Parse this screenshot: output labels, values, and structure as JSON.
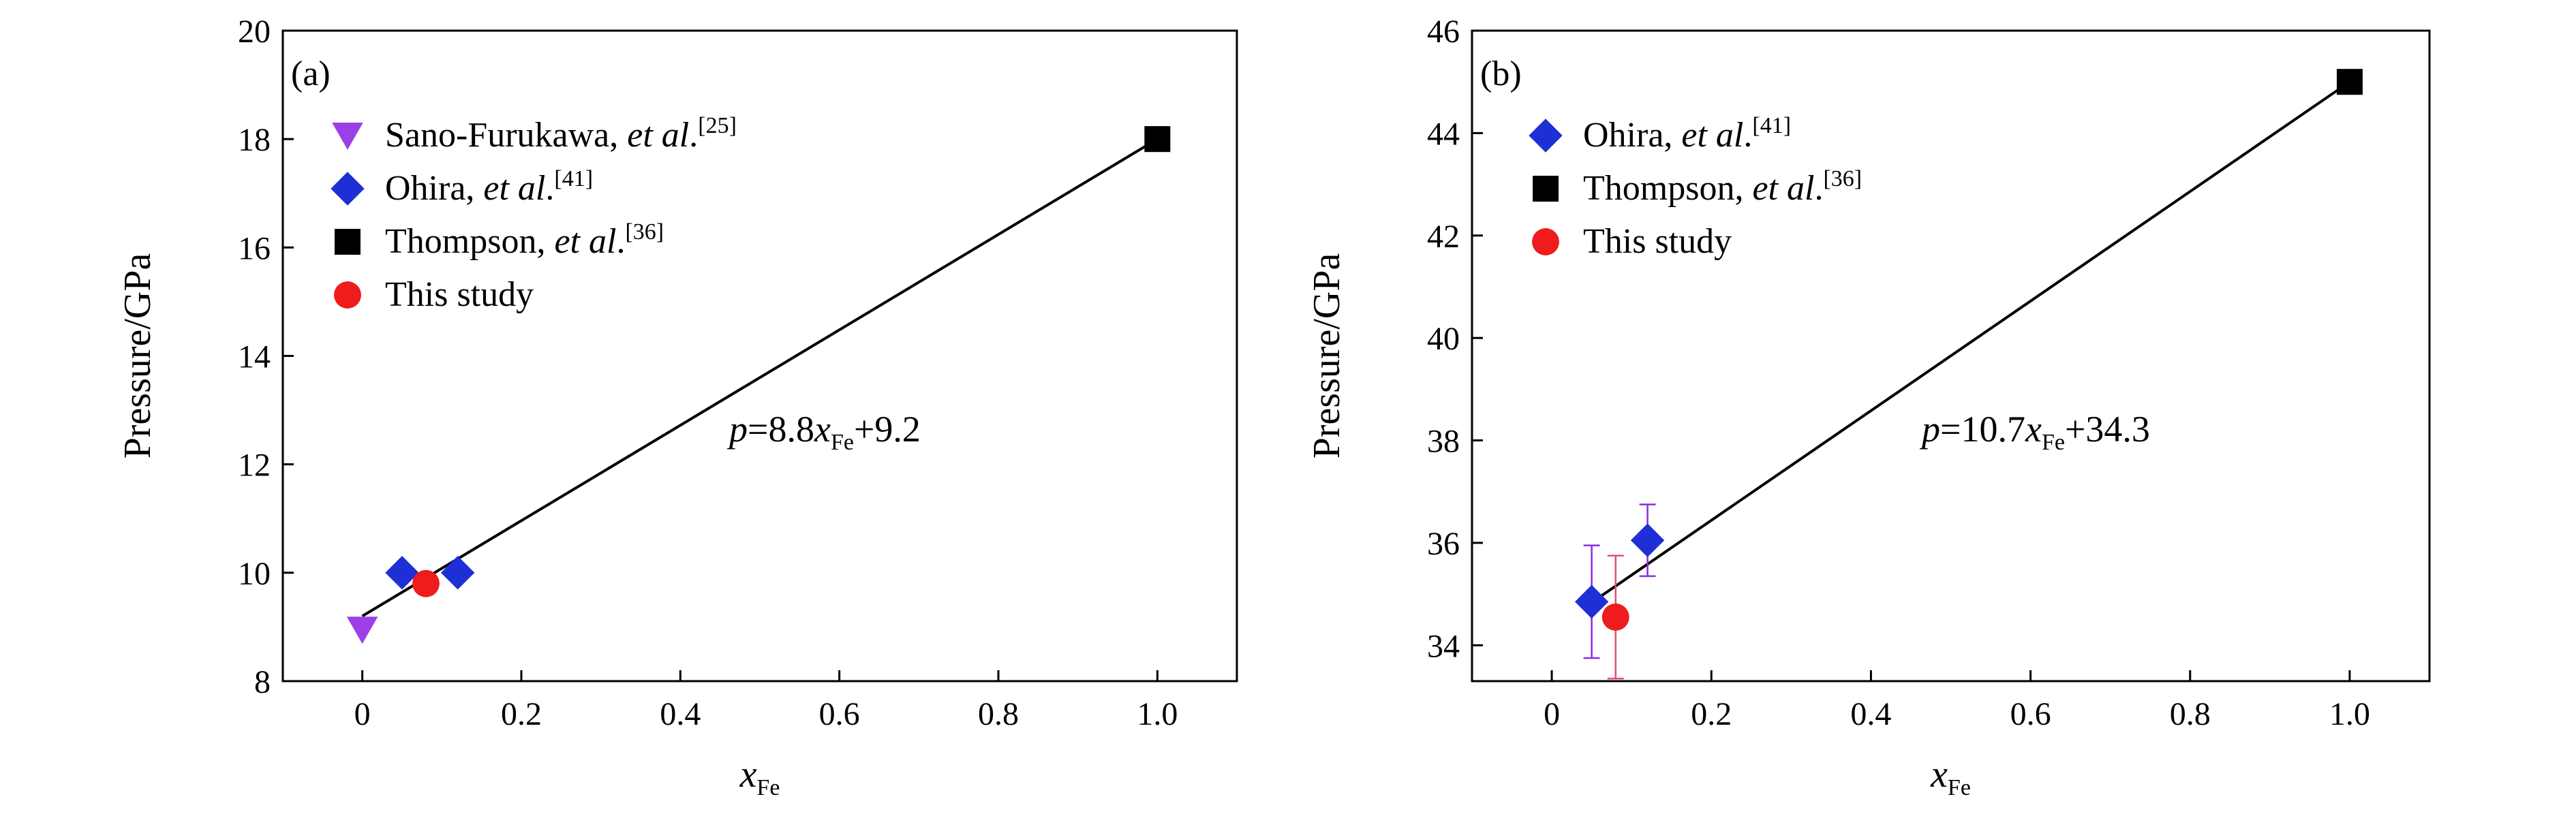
{
  "chart_data": [
    {
      "type": "scatter",
      "panel_label": "(a)",
      "xlabel": "x",
      "xlabel_sub": "Fe",
      "ylabel": "Pressure/GPa",
      "xlim": [
        -0.1,
        1.1
      ],
      "ylim": [
        8,
        20
      ],
      "xticks": [
        0,
        0.2,
        0.4,
        0.6,
        0.8,
        1.0
      ],
      "xtick_labels": [
        "0",
        "0.2",
        "0.4",
        "0.6",
        "0.8",
        "1.0"
      ],
      "yticks": [
        8,
        10,
        12,
        14,
        16,
        18,
        20
      ],
      "ytick_labels": [
        "8",
        "10",
        "12",
        "14",
        "16",
        "18",
        "20"
      ],
      "legend_position": "top-left",
      "series": [
        {
          "name": "Sano-Furukawa, ",
          "name_em": "et al",
          "name_tail": ".",
          "ref": "[25]",
          "marker": "triangle-down",
          "color": "#9b3fe6",
          "x": [
            0.0
          ],
          "y": [
            8.95
          ]
        },
        {
          "name": "Ohira, ",
          "name_em": "et al",
          "name_tail": ".",
          "ref": "[41]",
          "marker": "diamond",
          "color": "#1f2fd6",
          "x": [
            0.05,
            0.12
          ],
          "y": [
            10.0,
            10.0
          ]
        },
        {
          "name": "Thompson, ",
          "name_em": "et al",
          "name_tail": ".",
          "ref": "[36]",
          "marker": "square",
          "color": "#000000",
          "x": [
            1.0
          ],
          "y": [
            18.0
          ]
        },
        {
          "name": "This study",
          "name_em": "",
          "name_tail": "",
          "ref": "",
          "marker": "circle",
          "color": "#ee1c1c",
          "x": [
            0.08
          ],
          "y": [
            9.8
          ]
        }
      ],
      "fit": {
        "slope": 8.8,
        "intercept": 9.2,
        "x_range": [
          0,
          1.0
        ]
      },
      "equation": {
        "p": "p",
        "mid": "=8.8",
        "x": "x",
        "sub": "Fe",
        "tail": "+9.2"
      }
    },
    {
      "type": "scatter",
      "panel_label": "(b)",
      "xlabel": "x",
      "xlabel_sub": "Fe",
      "ylabel": "Pressure/GPa",
      "xlim": [
        -0.1,
        1.1
      ],
      "ylim": [
        33.3,
        46
      ],
      "xticks": [
        0,
        0.2,
        0.4,
        0.6,
        0.8,
        1.0
      ],
      "xtick_labels": [
        "0",
        "0.2",
        "0.4",
        "0.6",
        "0.8",
        "1.0"
      ],
      "yticks": [
        34,
        36,
        38,
        40,
        42,
        44,
        46
      ],
      "ytick_labels": [
        "34",
        "36",
        "38",
        "40",
        "42",
        "44",
        "46"
      ],
      "legend_position": "top-left",
      "series": [
        {
          "name": "Ohira, ",
          "name_em": "et al",
          "name_tail": ".",
          "ref": "[41]",
          "marker": "diamond",
          "color": "#1f2fd6",
          "x": [
            0.05,
            0.12
          ],
          "y": [
            34.85,
            36.05
          ],
          "yerr": [
            1.1,
            0.7
          ],
          "err_color": "#8a2be2"
        },
        {
          "name": "Thompson, ",
          "name_em": "et al",
          "name_tail": ".",
          "ref": "[36]",
          "marker": "square",
          "color": "#000000",
          "x": [
            1.0
          ],
          "y": [
            45.0
          ]
        },
        {
          "name": "This study",
          "name_em": "",
          "name_tail": "",
          "ref": "",
          "marker": "circle",
          "color": "#ee1c1c",
          "x": [
            0.08
          ],
          "y": [
            34.55
          ],
          "yerr": [
            1.2
          ],
          "err_color": "#e0506a"
        }
      ],
      "fit": {
        "slope": 10.7,
        "intercept": 34.3,
        "x_range": [
          0.05,
          1.0
        ]
      },
      "equation": {
        "p": "p",
        "mid": "=10.7",
        "x": "x",
        "sub": "Fe",
        "tail": "+34.3"
      }
    }
  ]
}
